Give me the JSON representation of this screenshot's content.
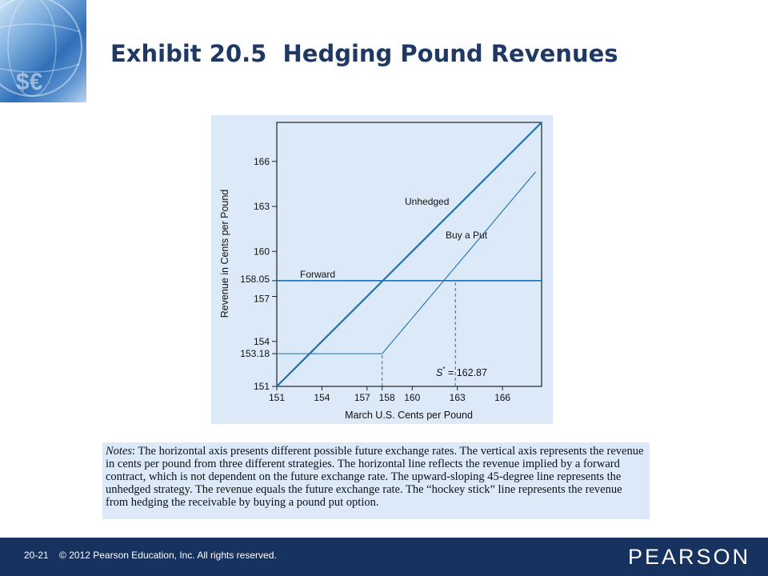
{
  "header": {
    "title": "Exhibit 20.5  Hedging Pound Revenues"
  },
  "chart_data": {
    "type": "line",
    "title": "",
    "xlabel": "March U.S. Cents per Pound",
    "ylabel": "Revenue in Cents per Pound",
    "x_ticks": [
      151,
      154,
      157,
      158,
      160,
      163,
      166
    ],
    "x_tick_labels": [
      "151",
      "154",
      "157",
      "158",
      "160",
      "163",
      "166"
    ],
    "y_ticks": [
      151,
      153.18,
      154,
      157,
      158.05,
      160,
      163,
      166
    ],
    "y_tick_labels": [
      "151",
      "153.18",
      "154",
      "157",
      "158.05",
      "160",
      "163",
      "166"
    ],
    "xlim": [
      151,
      168.6
    ],
    "ylim": [
      151,
      168.6
    ],
    "grid": false,
    "series": [
      {
        "name": "Unhedged",
        "x": [
          151,
          168.6
        ],
        "y": [
          151,
          168.6
        ]
      },
      {
        "name": "Buy a Put",
        "x": [
          151,
          158,
          168.2
        ],
        "y": [
          153.18,
          153.18,
          165.3
        ]
      },
      {
        "name": "Forward",
        "x": [
          151,
          168.6
        ],
        "y": [
          158.05,
          158.05
        ]
      }
    ],
    "annotations": [
      {
        "text": "S* = 162.87",
        "x": 162.87,
        "y": 158.05
      }
    ],
    "reference_lines": [
      {
        "x": 158,
        "y_from": 151,
        "y_to": 153.18
      },
      {
        "x": 162.87,
        "y_from": 151,
        "y_to": 158.05
      }
    ],
    "colors": {
      "line": "#1f6fb2",
      "panel": "#dbe9f8",
      "axis": "#222222"
    }
  },
  "notes": {
    "label": "Notes",
    "text": ": The horizontal axis presents different possible future exchange rates. The vertical axis represents the revenue in cents per pound from three different strategies. The horizontal line reflects the revenue implied by a forward contract, which is not dependent on the future exchange rate. The upward-sloping 45-degree line represents the unhedged strategy. The revenue equals the future exchange rate. The “hockey stick” line represents the revenue from hedging the receivable by buying a pound put option."
  },
  "footer": {
    "slide_number": "20-21",
    "copyright": "© 2012 Pearson Education, Inc. All rights reserved.",
    "brand": "PEARSON"
  }
}
